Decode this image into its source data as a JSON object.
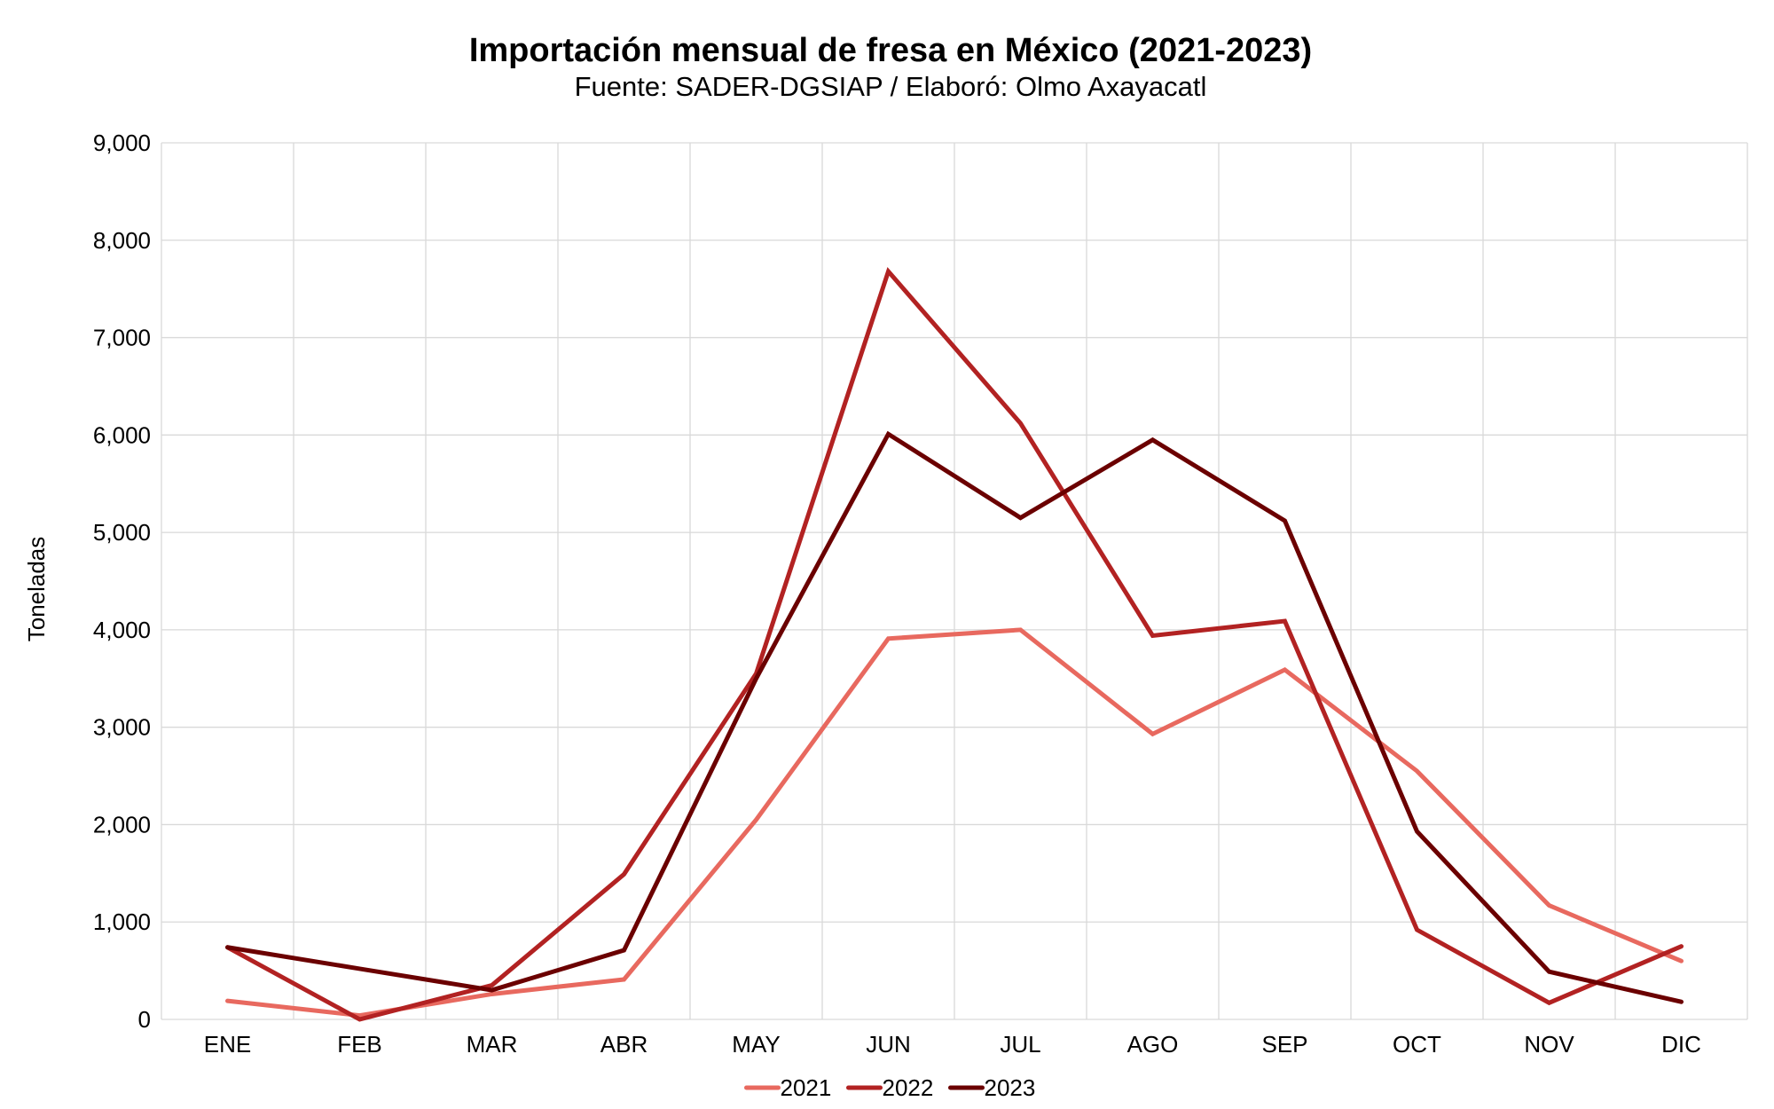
{
  "chart_data": {
    "type": "line",
    "title": "Importación mensual de fresa en México (2021-2023)",
    "subtitle": "Fuente: SADER-DGSIAP / Elaboró: Olmo Axayacatl",
    "xlabel": "",
    "ylabel": "Toneladas",
    "ylim": [
      0,
      9000
    ],
    "yticks": [
      "0",
      "1,000",
      "2,000",
      "3,000",
      "4,000",
      "5,000",
      "6,000",
      "7,000",
      "8,000",
      "9,000"
    ],
    "grid": true,
    "legend_position": "bottom",
    "categories": [
      "ENE",
      "FEB",
      "MAR",
      "ABR",
      "MAY",
      "JUN",
      "JUL",
      "AGO",
      "SEP",
      "OCT",
      "NOV",
      "DIC"
    ],
    "series": [
      {
        "name": "2021",
        "color": "#e8695f",
        "values": [
          190,
          40,
          260,
          410,
          2050,
          3910,
          4000,
          2930,
          3590,
          2550,
          1170,
          600
        ]
      },
      {
        "name": "2022",
        "color": "#b22222",
        "values": [
          740,
          0,
          350,
          1490,
          3550,
          7680,
          6120,
          3940,
          4090,
          920,
          170,
          750
        ]
      },
      {
        "name": "2023",
        "color": "#6b0000",
        "values": [
          740,
          520,
          300,
          710,
          3500,
          6010,
          5150,
          5950,
          5120,
          1930,
          490,
          180
        ]
      }
    ]
  }
}
